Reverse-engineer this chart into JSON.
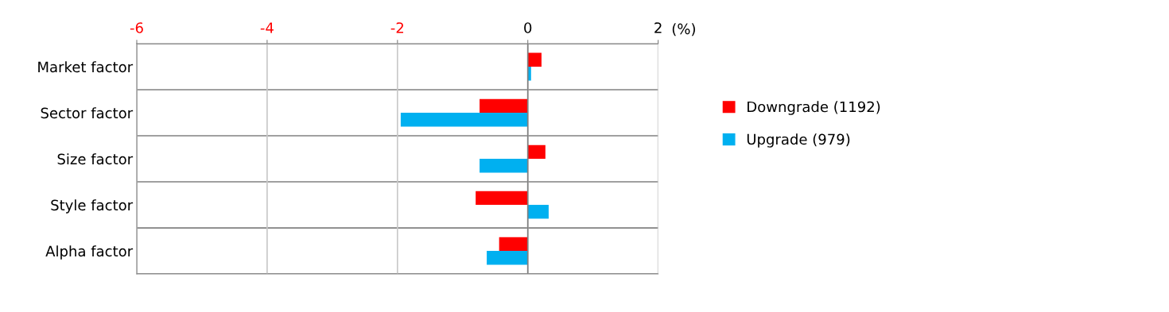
{
  "chart_data": {
    "type": "bar",
    "orientation": "horizontal",
    "xlabel": "(%)",
    "categories": [
      "Market factor",
      "Sector factor",
      "Size factor",
      "Style factor",
      "Alpha factor"
    ],
    "series": [
      {
        "name": "Downgrade (1192)",
        "color": "#ff0000",
        "values": [
          0.21,
          -0.74,
          0.27,
          -0.8,
          -0.44
        ]
      },
      {
        "name": "Upgrade (979)",
        "color": "#00b0f0",
        "values": [
          0.05,
          -1.95,
          -0.74,
          0.32,
          -0.63
        ]
      }
    ],
    "xlim": [
      -6,
      2
    ],
    "xticks": [
      -6,
      -4,
      -2,
      0,
      2
    ],
    "grid": true,
    "legend": "right"
  }
}
